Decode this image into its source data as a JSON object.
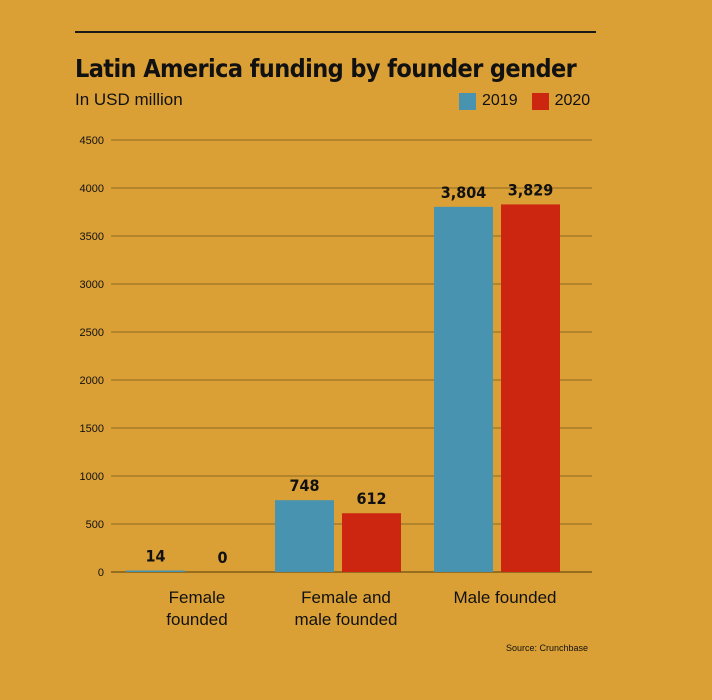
{
  "chart_data": {
    "type": "bar",
    "title": "Latin America funding by founder gender",
    "subtitle": "In USD million",
    "categories": [
      [
        "Female",
        "founded"
      ],
      [
        "Female and",
        "male founded"
      ],
      [
        "Male founded"
      ]
    ],
    "series": [
      {
        "name": "2019",
        "color": "#4793B0",
        "values": [
          14,
          748,
          3804
        ],
        "labels": [
          "14",
          "748",
          "3,804"
        ]
      },
      {
        "name": "2020",
        "color": "#CC2510",
        "values": [
          0,
          612,
          3829
        ],
        "labels": [
          "0",
          "612",
          "3,829"
        ]
      }
    ],
    "ylim": [
      0,
      4500
    ],
    "yticks": [
      "0",
      "500",
      "1000",
      "1500",
      "2000",
      "2500",
      "3000",
      "3500",
      "4000",
      "4500"
    ],
    "grid": true,
    "legend_position": "top-right",
    "source": "Source: Crunchbase"
  }
}
